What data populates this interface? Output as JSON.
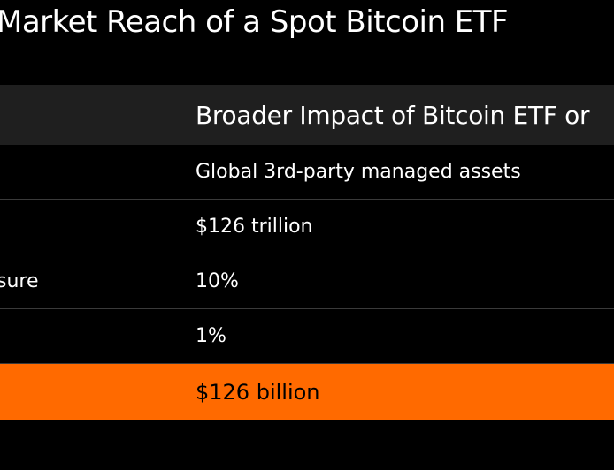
{
  "title": "Market Reach of a Spot Bitcoin ETF",
  "table": {
    "header": {
      "left": "",
      "right": "Broader Impact of Bitcoin ETF or"
    },
    "rows": [
      {
        "left": "",
        "right": "Global 3rd-party managed assets"
      },
      {
        "left": "",
        "right": "$126 trillion"
      },
      {
        "left": "sure",
        "right": "10%"
      },
      {
        "left": "",
        "right": "1%"
      }
    ],
    "highlight": {
      "left": "",
      "right": "$126 billion"
    }
  },
  "colors": {
    "background": "#000000",
    "header_background": "#1f1f1f",
    "highlight": "#ff6a00",
    "divider": "#3a3a3a"
  }
}
